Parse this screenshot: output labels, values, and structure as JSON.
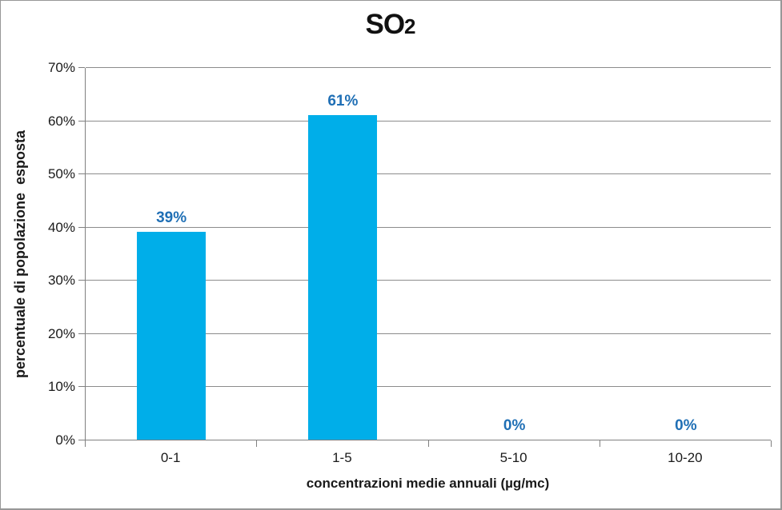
{
  "figure": {
    "title_main": "SO",
    "title_sub": "2"
  },
  "chart_data": {
    "type": "bar",
    "title": "SO2",
    "categories": [
      "0-1",
      "1-5",
      "5-10",
      "10-20"
    ],
    "values": [
      39,
      61,
      0,
      0
    ],
    "value_labels": [
      "39%",
      "61%",
      "0%",
      "0%"
    ],
    "xlabel": "concentrazioni medie annuali (µg/mc)",
    "ylabel": "percentuale di popolazione  esposta",
    "ylim": [
      0,
      70
    ],
    "ytick_step": 10,
    "ytick_labels": [
      "0%",
      "10%",
      "20%",
      "30%",
      "40%",
      "50%",
      "60%",
      "70%"
    ],
    "grid": true,
    "legend": "none",
    "bar_color": "#00AEE9",
    "value_label_color": "#1F6FB5",
    "gridline_color": "#8C8C8C",
    "axis_color": "#808080"
  }
}
